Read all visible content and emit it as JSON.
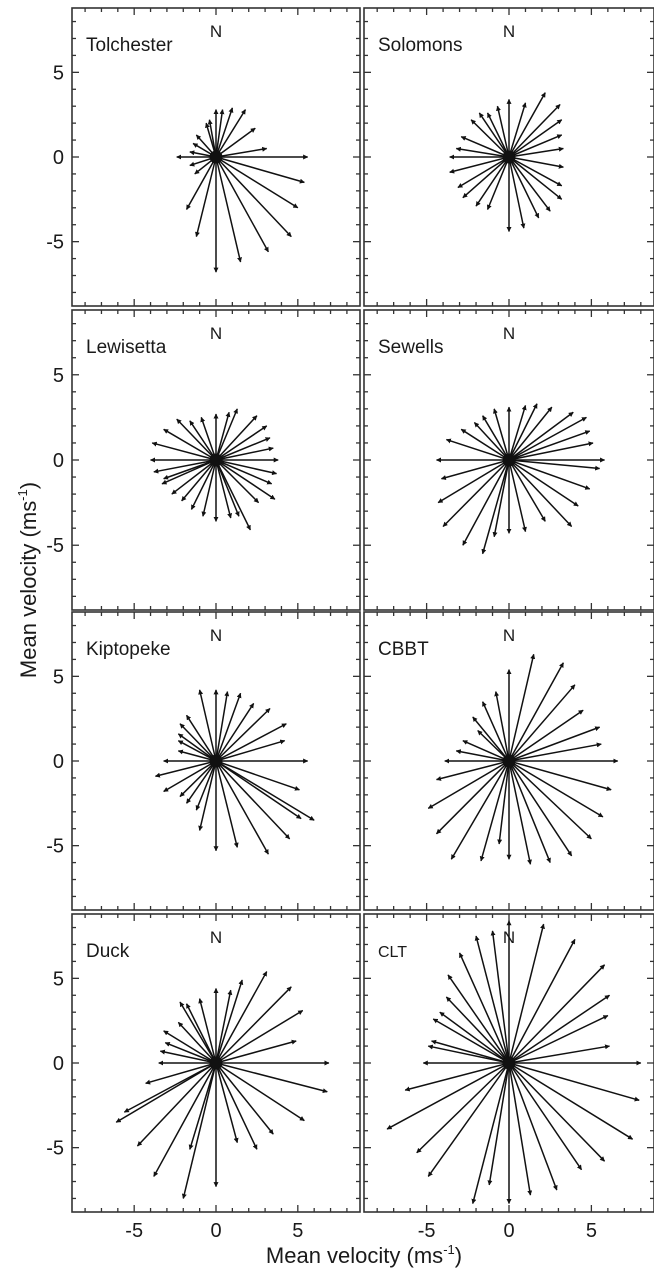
{
  "chart_data": {
    "type": "vector-rose",
    "x_axis_title": "Mean velocity (ms",
    "x_axis_title_sup": "-1",
    "x_axis_title_end": ")",
    "y_axis_title": "Mean velocity (ms",
    "y_axis_title_sup": "-1",
    "y_axis_title_end": ")",
    "xlim": [
      -8.8,
      8.8
    ],
    "ylim": [
      -8.8,
      8.8
    ],
    "x_tick_values": [
      -5,
      0,
      5
    ],
    "x_tick_labels": [
      "-5",
      "0",
      "5"
    ],
    "y_tick_values": [
      5,
      0,
      -5
    ],
    "y_tick_labels": [
      "5",
      "0",
      "-5"
    ],
    "minor_tick_step": 1,
    "arrow_color": "#111111",
    "panels": [
      {
        "name": "Tolchester",
        "north_label": "N",
        "vectors": [
          [
            0,
            -6.8
          ],
          [
            1.5,
            -6.2
          ],
          [
            3.2,
            -5.6
          ],
          [
            4.6,
            -4.7
          ],
          [
            5,
            -3
          ],
          [
            5.4,
            -1.5
          ],
          [
            5.6,
            0
          ],
          [
            3.1,
            0.5
          ],
          [
            2.4,
            1.7
          ],
          [
            1.8,
            2.8
          ],
          [
            1,
            2.9
          ],
          [
            0.4,
            2.8
          ],
          [
            0,
            2.8
          ],
          [
            -0.4,
            2.2
          ],
          [
            -0.6,
            2.0
          ],
          [
            -1.2,
            1.3
          ],
          [
            -1.4,
            0.8
          ],
          [
            -1.6,
            0.3
          ],
          [
            -2.4,
            0
          ],
          [
            -1.6,
            -0.5
          ],
          [
            -1.3,
            -1.0
          ],
          [
            -1.8,
            -3.1
          ],
          [
            -1.2,
            -4.7
          ]
        ]
      },
      {
        "name": "Solomons",
        "north_label": "N",
        "vectors": [
          [
            0,
            -4.4
          ],
          [
            0.9,
            -4.2
          ],
          [
            1.8,
            -3.6
          ],
          [
            2.5,
            -3.2
          ],
          [
            3.2,
            -2.5
          ],
          [
            3.2,
            -1.7
          ],
          [
            3.3,
            -0.6
          ],
          [
            3.3,
            0.5
          ],
          [
            3.2,
            1.3
          ],
          [
            3.2,
            2.2
          ],
          [
            3.1,
            3.1
          ],
          [
            2.2,
            3.8
          ],
          [
            1,
            3.2
          ],
          [
            0,
            3.4
          ],
          [
            -0.7,
            3
          ],
          [
            -1.3,
            2.6
          ],
          [
            -1.8,
            2.6
          ],
          [
            -2.3,
            2.2
          ],
          [
            -2.9,
            1.2
          ],
          [
            -3.2,
            0.5
          ],
          [
            -3.6,
            0
          ],
          [
            -3.6,
            -0.9
          ],
          [
            -3.1,
            -1.8
          ],
          [
            -2.8,
            -2.4
          ],
          [
            -2,
            -2.9
          ],
          [
            -1.3,
            -3.1
          ]
        ]
      },
      {
        "name": "Lewisetta",
        "north_label": "N",
        "vectors": [
          [
            0,
            -3.6
          ],
          [
            0.9,
            -3.4
          ],
          [
            1.4,
            -3.3
          ],
          [
            2.1,
            -4.1
          ],
          [
            2.6,
            -2.5
          ],
          [
            3.6,
            -2.3
          ],
          [
            3.4,
            -1.4
          ],
          [
            3.7,
            -0.8
          ],
          [
            3.8,
            0
          ],
          [
            3.5,
            0.7
          ],
          [
            3.3,
            1.3
          ],
          [
            3.1,
            2.0
          ],
          [
            2.5,
            2.6
          ],
          [
            1.3,
            3
          ],
          [
            0.8,
            2.8
          ],
          [
            0,
            2.7
          ],
          [
            -0.9,
            2.5
          ],
          [
            -1.6,
            2.3
          ],
          [
            -2.4,
            2.4
          ],
          [
            -3.2,
            1.8
          ],
          [
            -3.9,
            1
          ],
          [
            -4,
            0
          ],
          [
            -3.8,
            -0.7
          ],
          [
            -3.2,
            -1.1
          ],
          [
            -3.3,
            -1.4
          ],
          [
            -2.7,
            -2.0
          ],
          [
            -2.1,
            -2.4
          ],
          [
            -1.5,
            -2.9
          ],
          [
            -0.8,
            -3.3
          ]
        ]
      },
      {
        "name": "Sewells",
        "north_label": "N",
        "vectors": [
          [
            0,
            -4.3
          ],
          [
            1,
            -4.2
          ],
          [
            2.2,
            -3.6
          ],
          [
            3.8,
            -3.9
          ],
          [
            4.2,
            -2.7
          ],
          [
            4.9,
            -1.7
          ],
          [
            5.5,
            -0.5
          ],
          [
            5.8,
            0
          ],
          [
            5.1,
            1.0
          ],
          [
            4.9,
            1.7
          ],
          [
            4.7,
            2.5
          ],
          [
            3.9,
            2.8
          ],
          [
            2.6,
            3.1
          ],
          [
            1.7,
            3.3
          ],
          [
            1,
            3.2
          ],
          [
            0,
            3.1
          ],
          [
            -0.9,
            3.0
          ],
          [
            -1.6,
            2.6
          ],
          [
            -2.1,
            2.2
          ],
          [
            -2.9,
            1.8
          ],
          [
            -3.8,
            1.2
          ],
          [
            -4.4,
            0
          ],
          [
            -4.1,
            -1.1
          ],
          [
            -4.3,
            -2.5
          ],
          [
            -4.0,
            -3.9
          ],
          [
            -2.8,
            -5
          ],
          [
            -1.6,
            -5.5
          ],
          [
            -0.9,
            -4.5
          ]
        ]
      },
      {
        "name": "Kiptopeke",
        "north_label": "N",
        "vectors": [
          [
            0,
            -5.3
          ],
          [
            1.3,
            -5.1
          ],
          [
            3.2,
            -5.5
          ],
          [
            4.5,
            -4.6
          ],
          [
            5.2,
            -3.4
          ],
          [
            6,
            -3.5
          ],
          [
            5.1,
            -1.7
          ],
          [
            5.6,
            0
          ],
          [
            4.2,
            1.2
          ],
          [
            4.3,
            2.2
          ],
          [
            3.3,
            3.1
          ],
          [
            2.3,
            3.4
          ],
          [
            1.5,
            4
          ],
          [
            0.7,
            4.1
          ],
          [
            0,
            4.2
          ],
          [
            -1,
            4.2
          ],
          [
            -1.8,
            2.7
          ],
          [
            -2.2,
            2.2
          ],
          [
            -2.3,
            1.6
          ],
          [
            -2.3,
            1.2
          ],
          [
            -2.3,
            0.6
          ],
          [
            -3.2,
            0
          ],
          [
            -3.7,
            -0.9
          ],
          [
            -3.2,
            -1.8
          ],
          [
            -2.2,
            -2.1
          ],
          [
            -1.8,
            -2.5
          ],
          [
            -1.2,
            -2.9
          ],
          [
            -1,
            -4.1
          ]
        ]
      },
      {
        "name": "CBBT",
        "north_label": "N",
        "vectors": [
          [
            0,
            -5.8
          ],
          [
            1.3,
            -6.1
          ],
          [
            2.5,
            -6
          ],
          [
            3.8,
            -5.6
          ],
          [
            5,
            -4.6
          ],
          [
            5.7,
            -3.3
          ],
          [
            6.2,
            -1.7
          ],
          [
            6.6,
            0
          ],
          [
            5.6,
            1.0
          ],
          [
            5.5,
            2.0
          ],
          [
            4.5,
            3
          ],
          [
            4,
            4.5
          ],
          [
            3.3,
            5.8
          ],
          [
            1.5,
            6.3
          ],
          [
            0,
            5.4
          ],
          [
            -0.8,
            4.1
          ],
          [
            -1.6,
            3.5
          ],
          [
            -2.2,
            2.6
          ],
          [
            -1.9,
            1.8
          ],
          [
            -2.8,
            1.2
          ],
          [
            -3.2,
            0.6
          ],
          [
            -3.9,
            0
          ],
          [
            -4.4,
            -1.1
          ],
          [
            -4.9,
            -2.8
          ],
          [
            -4.4,
            -4.3
          ],
          [
            -3.5,
            -5.8
          ],
          [
            -1.7,
            -5.9
          ],
          [
            -0.6,
            -4.9
          ]
        ]
      },
      {
        "name": "Duck",
        "north_label": "N",
        "vectors": [
          [
            0,
            -7.3
          ],
          [
            1.3,
            -4.7
          ],
          [
            2.5,
            -5.1
          ],
          [
            3.5,
            -4.2
          ],
          [
            5.4,
            -3.4
          ],
          [
            6.8,
            -1.7
          ],
          [
            6.9,
            0
          ],
          [
            4.9,
            1.3
          ],
          [
            5.3,
            3.1
          ],
          [
            4.6,
            4.5
          ],
          [
            3.1,
            5.4
          ],
          [
            1.6,
            4.9
          ],
          [
            0.9,
            4.3
          ],
          [
            0,
            4.4
          ],
          [
            -1,
            3.8
          ],
          [
            -1.8,
            3.5
          ],
          [
            -2.2,
            3.6
          ],
          [
            -2.3,
            2.4
          ],
          [
            -3.2,
            1.9
          ],
          [
            -3.1,
            1.2
          ],
          [
            -3.4,
            0.7
          ],
          [
            -3.5,
            0
          ],
          [
            -4.3,
            -1.2
          ],
          [
            -5.6,
            -2.9
          ],
          [
            -6.1,
            -3.5
          ],
          [
            -4.8,
            -4.9
          ],
          [
            -3.8,
            -6.7
          ],
          [
            -2,
            -8
          ],
          [
            -1.6,
            -5.1
          ]
        ]
      },
      {
        "name": "CLT",
        "north_label": "N",
        "vectors": [
          [
            0,
            -8.3
          ],
          [
            1.3,
            -7.8
          ],
          [
            2.9,
            -7.5
          ],
          [
            4.4,
            -6.3
          ],
          [
            5.8,
            -5.8
          ],
          [
            7.5,
            -4.5
          ],
          [
            7.9,
            -2.2
          ],
          [
            8,
            0
          ],
          [
            6.1,
            1
          ],
          [
            6,
            2.8
          ],
          [
            6.1,
            4
          ],
          [
            5.8,
            5.8
          ],
          [
            4,
            7.3
          ],
          [
            2.1,
            8.2
          ],
          [
            0,
            8.4
          ],
          [
            -1,
            7.8
          ],
          [
            -2,
            7.5
          ],
          [
            -3,
            6.5
          ],
          [
            -3.7,
            5.2
          ],
          [
            -3.8,
            3.9
          ],
          [
            -4.2,
            3.0
          ],
          [
            -4.6,
            2.6
          ],
          [
            -4.7,
            1.3
          ],
          [
            -4.9,
            1.0
          ],
          [
            -5.2,
            0
          ],
          [
            -6.3,
            -1.6
          ],
          [
            -7.4,
            -3.9
          ],
          [
            -5.6,
            -5.3
          ],
          [
            -4.9,
            -6.7
          ],
          [
            -2.2,
            -8.3
          ],
          [
            -1.2,
            -7.2
          ]
        ]
      }
    ]
  }
}
